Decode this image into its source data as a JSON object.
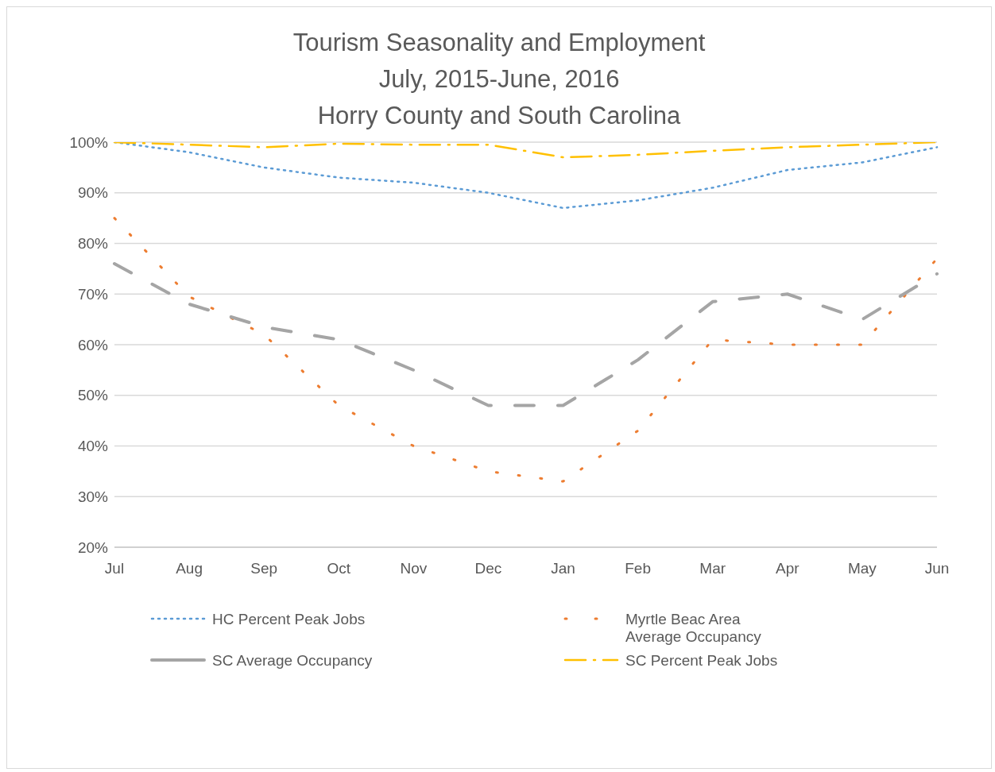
{
  "chart_data": {
    "type": "line",
    "title": "Tourism Seasonality and Employment",
    "subtitle": "July, 2015-June, 2016\nHorry County and South Carolina",
    "categories": [
      "Jul",
      "Aug",
      "Sep",
      "Oct",
      "Nov",
      "Dec",
      "Jan",
      "Feb",
      "Mar",
      "Apr",
      "May",
      "Jun"
    ],
    "series": [
      {
        "name": "HC Percent Peak Jobs",
        "color": "#5b9bd5",
        "line_style": "dotted",
        "values": [
          100,
          98,
          95,
          93,
          92,
          90,
          87,
          88.5,
          91,
          94.5,
          96,
          99
        ]
      },
      {
        "name": "Myrtle Beac Area Average Occupancy",
        "color": "#ed7d31",
        "line_style": "dotted",
        "values": [
          85,
          69.5,
          62,
          48,
          40,
          35,
          33,
          43,
          61,
          60,
          60,
          77
        ]
      },
      {
        "name": "SC Average Occupancy",
        "color": "#a5a5a5",
        "line_style": "dashed",
        "values": [
          76,
          68,
          63.5,
          61,
          55,
          48,
          48,
          57,
          68.5,
          70,
          65,
          74
        ]
      },
      {
        "name": "SC Percent Peak Jobs",
        "color": "#ffc000",
        "line_style": "dashed",
        "values": [
          100,
          99.5,
          99,
          99.7,
          99.5,
          99.5,
          97,
          97.5,
          98.3,
          99,
          99.5,
          100
        ]
      }
    ],
    "ylim": [
      20,
      100
    ],
    "yticks": [
      {
        "value": 20,
        "label": "20%"
      },
      {
        "value": 30,
        "label": "30%"
      },
      {
        "value": 40,
        "label": "40%"
      },
      {
        "value": 50,
        "label": "50%"
      },
      {
        "value": 60,
        "label": "60%"
      },
      {
        "value": 70,
        "label": "70%"
      },
      {
        "value": 80,
        "label": "80%"
      },
      {
        "value": 90,
        "label": "90%"
      },
      {
        "value": 100,
        "label": "100%"
      }
    ],
    "grid": "y",
    "legend": "bottom",
    "marker": "none"
  }
}
